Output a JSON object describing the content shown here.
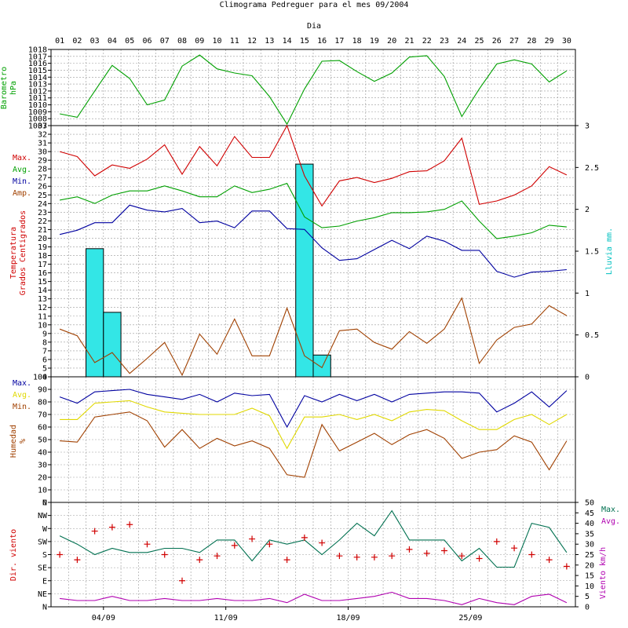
{
  "title": "Climograma Pedreguer para el mes 09/2004",
  "day_header": "Dia",
  "days": [
    "01",
    "02",
    "03",
    "04",
    "05",
    "06",
    "07",
    "08",
    "09",
    "10",
    "11",
    "12",
    "13",
    "14",
    "15",
    "16",
    "17",
    "18",
    "19",
    "20",
    "21",
    "22",
    "23",
    "24",
    "25",
    "26",
    "27",
    "28",
    "29",
    "30"
  ],
  "week_labels": [
    "04/09",
    "11/09",
    "18/09",
    "25/09"
  ],
  "colors": {
    "green": "#00a000",
    "red": "#d00000",
    "blue": "#0000a0",
    "yellow": "#e0d800",
    "brown": "#a04000",
    "teal": "#007050",
    "magenta": "#b000b0",
    "cyan": "#00c0c0",
    "rain_fill": "#33e6e6",
    "grid": "#999999"
  },
  "chart_data": [
    {
      "type": "line",
      "panel": "barometer",
      "ylabel": [
        "Barometro",
        "hPa"
      ],
      "ylim": [
        1007,
        1018
      ],
      "yticks": [
        "1007",
        "1008",
        "1009",
        "1010",
        "1011",
        "1012",
        "1013",
        "1014",
        "1015",
        "1016",
        "1017",
        "1018"
      ],
      "series": [
        {
          "color": "green",
          "values": [
            1008.7,
            1008.2,
            1012.0,
            1015.7,
            1013.8,
            1010.0,
            1010.7,
            1015.6,
            1017.2,
            1015.2,
            1014.6,
            1014.2,
            1011.2,
            1007.2,
            1012.3,
            1016.3,
            1016.4,
            1014.8,
            1013.4,
            1014.6,
            1016.9,
            1017.1,
            1014.1,
            1008.3,
            1012.3,
            1015.9,
            1016.5,
            1015.9,
            1013.3,
            1014.9
          ]
        }
      ]
    },
    {
      "type": "line+bar",
      "panel": "temperature",
      "ylabel": [
        "Temperatura",
        "Grados Centigrados"
      ],
      "ylim": [
        4,
        34
      ],
      "yticks": [
        "4",
        "5",
        "6",
        "7",
        "8",
        "9",
        "10",
        "11",
        "12",
        "13",
        "14",
        "15",
        "16",
        "17",
        "18",
        "19",
        "20",
        "21",
        "22",
        "23",
        "24",
        "25",
        "26",
        "27",
        "28",
        "29",
        "30",
        "31",
        "32",
        "33"
      ],
      "y2label": "Lluvia mm.",
      "y2lim": [
        0,
        3
      ],
      "y2ticks": [
        "0",
        "0.5",
        "1",
        "1.5",
        "2",
        "2.5",
        "3"
      ],
      "legend": [
        {
          "label": "Max.",
          "color": "red"
        },
        {
          "label": "Avg.",
          "color": "green"
        },
        {
          "label": "Min.",
          "color": "blue"
        },
        {
          "label": "Amp.",
          "color": "brown"
        }
      ],
      "series": [
        {
          "name": "Max.",
          "color": "red",
          "values": [
            30.9,
            30.3,
            28.0,
            29.3,
            28.9,
            30.0,
            31.7,
            28.2,
            31.5,
            29.2,
            32.7,
            30.2,
            30.2,
            34.0,
            28.0,
            24.4,
            27.4,
            27.8,
            27.2,
            27.7,
            28.5,
            28.6,
            29.8,
            32.5,
            24.6,
            25.0,
            25.7,
            26.8,
            29.1,
            28.1
          ]
        },
        {
          "name": "Avg.",
          "color": "green",
          "values": [
            25.1,
            25.5,
            24.7,
            25.7,
            26.2,
            26.2,
            26.8,
            26.2,
            25.5,
            25.5,
            26.8,
            26.0,
            26.4,
            27.1,
            23.1,
            21.8,
            22.0,
            22.6,
            23.0,
            23.6,
            23.6,
            23.7,
            24.0,
            25.0,
            22.6,
            20.5,
            20.8,
            21.2,
            22.1,
            21.9
          ]
        },
        {
          "name": "Min.",
          "color": "blue",
          "values": [
            21.0,
            21.5,
            22.4,
            22.4,
            24.5,
            23.9,
            23.7,
            24.1,
            22.4,
            22.6,
            21.8,
            23.8,
            23.8,
            21.7,
            21.6,
            19.4,
            17.9,
            18.1,
            19.2,
            20.3,
            19.3,
            20.8,
            20.2,
            19.1,
            19.1,
            16.6,
            15.9,
            16.5,
            16.6,
            16.8
          ]
        },
        {
          "name": "Amp.",
          "color": "brown",
          "values": [
            9.7,
            8.9,
            5.7,
            6.9,
            4.4,
            6.2,
            8.1,
            4.2,
            9.1,
            6.7,
            10.9,
            6.5,
            6.5,
            12.2,
            6.5,
            5.1,
            9.5,
            9.7,
            8.1,
            7.3,
            9.4,
            8.0,
            9.7,
            13.4,
            5.6,
            8.4,
            9.9,
            10.3,
            12.5,
            11.3
          ]
        }
      ],
      "rain": [
        0,
        0,
        1.53,
        0.77,
        0,
        0,
        0,
        0,
        0,
        0,
        0,
        0,
        0,
        0,
        2.54,
        0.26,
        0,
        0,
        0,
        0,
        0,
        0,
        0,
        0,
        0,
        0,
        0,
        0,
        0,
        0
      ]
    },
    {
      "type": "line",
      "panel": "humidity",
      "ylabel": [
        "Humedad",
        "%"
      ],
      "ylim": [
        0,
        100
      ],
      "yticks": [
        "0",
        "10",
        "20",
        "30",
        "40",
        "50",
        "60",
        "70",
        "80",
        "90",
        "100"
      ],
      "legend": [
        {
          "label": "Max.",
          "color": "blue"
        },
        {
          "label": "Avg.",
          "color": "yellow"
        },
        {
          "label": "Min.",
          "color": "brown"
        }
      ],
      "series": [
        {
          "name": "Max.",
          "color": "blue",
          "values": [
            84,
            79,
            88,
            89,
            90,
            86,
            84,
            82,
            86,
            80,
            87,
            85,
            86,
            60,
            85,
            80,
            86,
            81,
            86,
            80,
            86,
            87,
            88,
            88,
            87,
            72,
            79,
            88,
            76,
            89
          ]
        },
        {
          "name": "Avg.",
          "color": "yellow",
          "values": [
            66,
            66,
            79,
            80,
            81,
            76,
            72,
            71,
            70,
            70,
            70,
            75,
            69,
            43,
            68,
            68,
            70,
            66,
            70,
            65,
            72,
            74,
            73,
            65,
            58,
            58,
            66,
            70,
            62,
            70
          ]
        },
        {
          "name": "Min.",
          "color": "brown",
          "values": [
            49,
            48,
            68,
            70,
            72,
            65,
            44,
            58,
            43,
            51,
            45,
            49,
            43,
            22,
            20,
            62,
            41,
            48,
            55,
            46,
            54,
            58,
            51,
            35,
            40,
            42,
            53,
            48,
            26,
            49
          ]
        }
      ]
    },
    {
      "type": "line+scatter",
      "panel": "wind",
      "ylabel": "Dir. viento",
      "ylim": [
        0,
        8
      ],
      "yticks": [
        "N",
        "NE",
        "E",
        "SE",
        "S",
        "SW",
        "W",
        "NW",
        "N"
      ],
      "y2label": "Viento km/h",
      "y2lim": [
        0,
        50
      ],
      "y2ticks": [
        "0",
        "5",
        "10",
        "15",
        "20",
        "25",
        "30",
        "35",
        "40",
        "45",
        "50"
      ],
      "legend": [
        {
          "label": "Max.",
          "color": "teal"
        },
        {
          "label": "Avg.",
          "color": "magenta"
        }
      ],
      "direction": [
        4.0,
        3.6,
        5.8,
        6.1,
        6.3,
        4.8,
        4.0,
        2.0,
        3.6,
        3.9,
        4.7,
        5.2,
        4.8,
        3.6,
        5.3,
        4.9,
        3.9,
        3.8,
        3.8,
        3.9,
        4.4,
        4.1,
        4.3,
        3.9,
        3.7,
        5.0,
        4.5,
        4.0,
        3.6,
        3.1
      ],
      "series": [
        {
          "name": "Max.",
          "color": "teal",
          "values": [
            34,
            30,
            25,
            28,
            26,
            26,
            28,
            28,
            26,
            32,
            32,
            22,
            32,
            30,
            32,
            25,
            32,
            40,
            34,
            46,
            32,
            32,
            32,
            22,
            28,
            19,
            19,
            40,
            38,
            26
          ]
        },
        {
          "name": "Avg.",
          "color": "magenta",
          "values": [
            4,
            3,
            3,
            5,
            3,
            3,
            4,
            3,
            3,
            4,
            3,
            3,
            4,
            2,
            6,
            3,
            3,
            4,
            5,
            7,
            4,
            4,
            3,
            1,
            4,
            2,
            1,
            5,
            6,
            2
          ]
        }
      ]
    }
  ]
}
